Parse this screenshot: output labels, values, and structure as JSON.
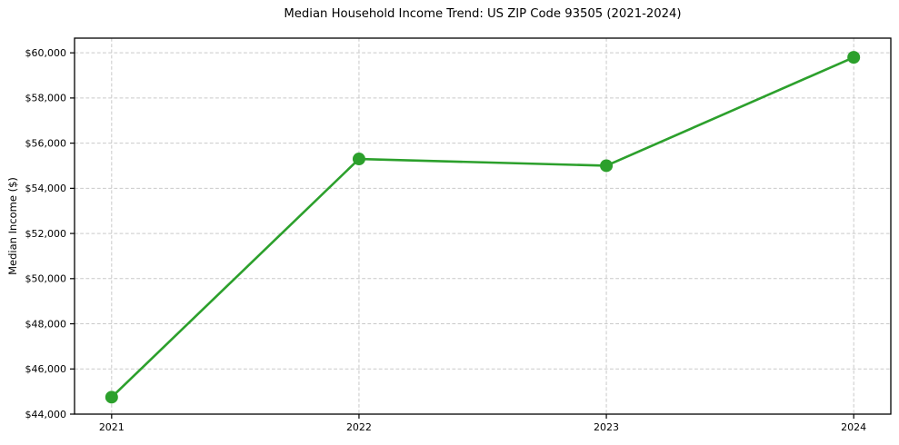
{
  "chart_data": {
    "type": "line",
    "title": "Median Household Income Trend: US ZIP Code 93505 (2021-2024)",
    "xlabel": "",
    "ylabel": "Median Income ($)",
    "x": [
      2021,
      2022,
      2023,
      2024
    ],
    "x_tick_labels": [
      "2021",
      "2022",
      "2023",
      "2024"
    ],
    "series": [
      {
        "name": "Median Household Income",
        "values": [
          44750,
          55300,
          55000,
          59800
        ]
      }
    ],
    "yticks": [
      44000,
      46000,
      48000,
      50000,
      52000,
      54000,
      56000,
      58000,
      60000
    ],
    "y_tick_labels": [
      "$44,000",
      "$46,000",
      "$48,000",
      "$50,000",
      "$52,000",
      "$54,000",
      "$56,000",
      "$58,000",
      "$60,000"
    ],
    "xlim": [
      2020.85,
      2024.15
    ],
    "ylim": [
      44000,
      60650
    ],
    "grid": true,
    "legend": "none",
    "line_color": "#2ca02c",
    "marker_color": "#2ca02c",
    "grid_color": "#c9c9c9",
    "spine_color": "#000000",
    "background_color": "#ffffff"
  }
}
